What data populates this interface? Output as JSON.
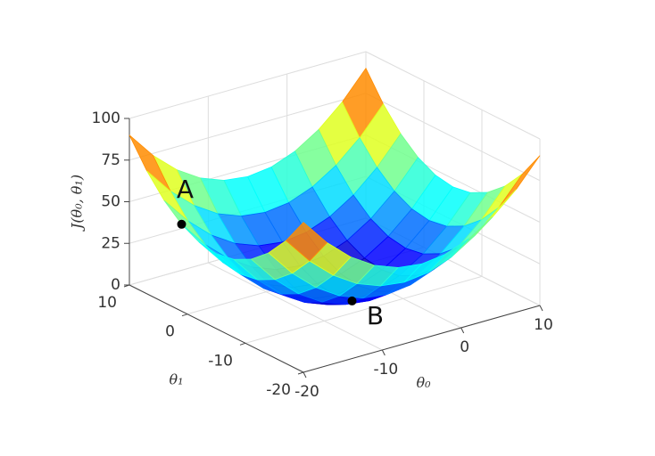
{
  "chart_data": {
    "type": "surface",
    "zlabel": "J(θ₀, θ₁)",
    "xlabel": "θ₀",
    "ylabel": "θ₁",
    "x": [
      -20,
      -17,
      -14,
      -11,
      -8,
      -5,
      -2,
      1,
      4,
      7,
      10
    ],
    "y": [
      -20,
      -17,
      -14,
      -11,
      -8,
      -5,
      -2,
      1,
      4,
      7,
      10
    ],
    "z": [
      [
        90,
        73.8,
        61.2,
        52.2,
        46.8,
        45,
        46.8,
        52.2,
        61.2,
        73.8,
        90
      ],
      [
        73.8,
        57.6,
        45,
        36,
        30.6,
        28.8,
        30.6,
        36,
        45,
        57.6,
        73.8
      ],
      [
        61.2,
        45,
        32.4,
        23.4,
        18,
        16.2,
        18,
        23.4,
        32.4,
        45,
        61.2
      ],
      [
        52.2,
        36,
        23.4,
        14.4,
        9,
        7.2,
        9,
        14.4,
        23.4,
        36,
        52.2
      ],
      [
        46.8,
        30.6,
        18,
        9,
        3.6,
        1.8,
        3.6,
        9,
        18,
        30.6,
        46.8
      ],
      [
        45,
        28.8,
        16.2,
        7.2,
        1.8,
        0,
        1.8,
        7.2,
        16.2,
        28.8,
        45
      ],
      [
        46.8,
        30.6,
        18,
        9,
        3.6,
        1.8,
        3.6,
        9,
        18,
        30.6,
        46.8
      ],
      [
        52.2,
        36,
        23.4,
        14.4,
        9,
        7.2,
        9,
        14.4,
        23.4,
        36,
        52.2
      ],
      [
        61.2,
        45,
        32.4,
        23.4,
        18,
        16.2,
        18,
        23.4,
        32.4,
        45,
        61.2
      ],
      [
        73.8,
        57.6,
        45,
        36,
        30.6,
        28.8,
        30.6,
        36,
        45,
        57.6,
        73.8
      ],
      [
        90,
        73.8,
        61.2,
        52.2,
        46.8,
        45,
        46.8,
        52.2,
        61.2,
        73.8,
        90
      ]
    ],
    "xlim": [
      -20,
      10
    ],
    "ylim": [
      -20,
      10
    ],
    "zlim": [
      0,
      100
    ],
    "xticks": [
      -20,
      -10,
      0,
      10
    ],
    "yticks": [
      -20,
      -10,
      0,
      10
    ],
    "zticks": [
      0,
      25,
      50,
      75,
      100
    ],
    "colormap": "jet",
    "grid": true,
    "points": [
      {
        "label": "A",
        "x": -20,
        "y": 1,
        "z": 52.2
      },
      {
        "label": "B",
        "x": -5,
        "y": -8,
        "z": 1.8
      }
    ]
  }
}
